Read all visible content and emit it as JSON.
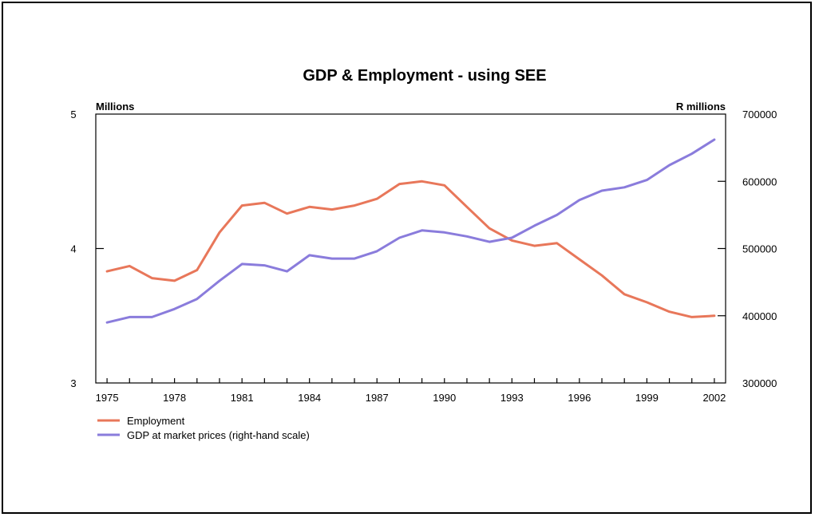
{
  "chart_data": {
    "type": "line",
    "title": "GDP & Employment - using SEE",
    "left_axis_unit": "Millions",
    "right_axis_unit": "R millions",
    "x_tick_labels": [
      "1975",
      "1978",
      "1981",
      "1984",
      "1987",
      "1990",
      "1993",
      "1996",
      "1999",
      "2002"
    ],
    "x_ticks": [
      1975,
      1978,
      1981,
      1984,
      1987,
      1990,
      1993,
      1996,
      1999,
      2002
    ],
    "xlim": [
      1974.5,
      2002.5
    ],
    "left_ylim": [
      3,
      5
    ],
    "left_ticks": [
      3,
      4,
      5
    ],
    "right_ylim": [
      300000,
      700000
    ],
    "right_ticks": [
      300000,
      400000,
      500000,
      600000,
      700000
    ],
    "right_tick_labels": [
      "300000",
      "400000",
      "500000",
      "600000",
      "700000"
    ],
    "grid": false,
    "legend_position": "bottom-left",
    "series": [
      {
        "name": "Employment",
        "axis": "left",
        "color": "#e8775a",
        "x": [
          1975,
          1976,
          1977,
          1978,
          1979,
          1980,
          1981,
          1982,
          1983,
          1984,
          1985,
          1986,
          1987,
          1988,
          1989,
          1990,
          1991,
          1992,
          1993,
          1994,
          1995,
          1996,
          1997,
          1998,
          1999,
          2000,
          2001,
          2002
        ],
        "values": [
          3.83,
          3.87,
          3.78,
          3.76,
          3.84,
          4.12,
          4.32,
          4.34,
          4.26,
          4.31,
          4.29,
          4.32,
          4.37,
          4.48,
          4.5,
          4.47,
          4.31,
          4.15,
          4.06,
          4.02,
          4.04,
          3.92,
          3.8,
          3.66,
          3.6,
          3.53,
          3.49,
          3.5
        ]
      },
      {
        "name": "GDP at market prices (right-hand scale)",
        "axis": "right",
        "color": "#8a7cdc",
        "x": [
          1975,
          1976,
          1977,
          1978,
          1979,
          1980,
          1981,
          1982,
          1983,
          1984,
          1985,
          1986,
          1987,
          1988,
          1989,
          1990,
          1991,
          1992,
          1993,
          1994,
          1995,
          1996,
          1997,
          1998,
          1999,
          2000,
          2001,
          2002
        ],
        "values": [
          390000,
          398000,
          398000,
          410000,
          425000,
          452000,
          477000,
          475000,
          466000,
          490000,
          485000,
          485000,
          496000,
          516000,
          527000,
          524000,
          518000,
          510000,
          516000,
          534000,
          550000,
          572000,
          586000,
          591000,
          602000,
          624000,
          641000,
          662000
        ]
      }
    ]
  }
}
